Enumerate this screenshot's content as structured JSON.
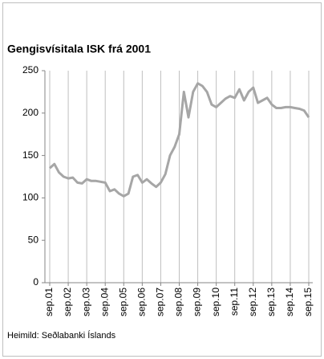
{
  "chart_data": {
    "type": "line",
    "title": "Gengisvísitala ISK frá 2001",
    "source": "Heimild: Seðlabanki Íslands",
    "categories": [
      "sep.01",
      null,
      null,
      null,
      "sep.02",
      null,
      null,
      null,
      "sep.03",
      null,
      null,
      null,
      "sep.04",
      null,
      null,
      null,
      "sep.05",
      null,
      null,
      null,
      "sep.06",
      null,
      null,
      null,
      "sep.07",
      null,
      null,
      null,
      "sep.08",
      null,
      null,
      null,
      "sep.09",
      null,
      null,
      null,
      "sep.10",
      null,
      null,
      null,
      "sep.11",
      null,
      null,
      null,
      "sep.12",
      null,
      null,
      null,
      "sep.13",
      null,
      null,
      null,
      "sep.14",
      null,
      null,
      null,
      "sep.15"
    ],
    "series": [
      {
        "name": "Gengisvísitala",
        "color": "#a6a6a6",
        "values": [
          135,
          140,
          130,
          125,
          123,
          124,
          118,
          117,
          122,
          120,
          120,
          119,
          118,
          108,
          110,
          105,
          102,
          105,
          125,
          127,
          118,
          122,
          117,
          113,
          118,
          128,
          150,
          160,
          175,
          225,
          195,
          225,
          235,
          232,
          225,
          210,
          207,
          212,
          217,
          220,
          218,
          228,
          215,
          225,
          230,
          212,
          215,
          218,
          210,
          206,
          206,
          207,
          207,
          206,
          205,
          203,
          195
        ]
      }
    ],
    "ylim": [
      0,
      250
    ],
    "yticks": [
      0,
      50,
      100,
      150,
      200,
      250
    ],
    "grid": true
  }
}
